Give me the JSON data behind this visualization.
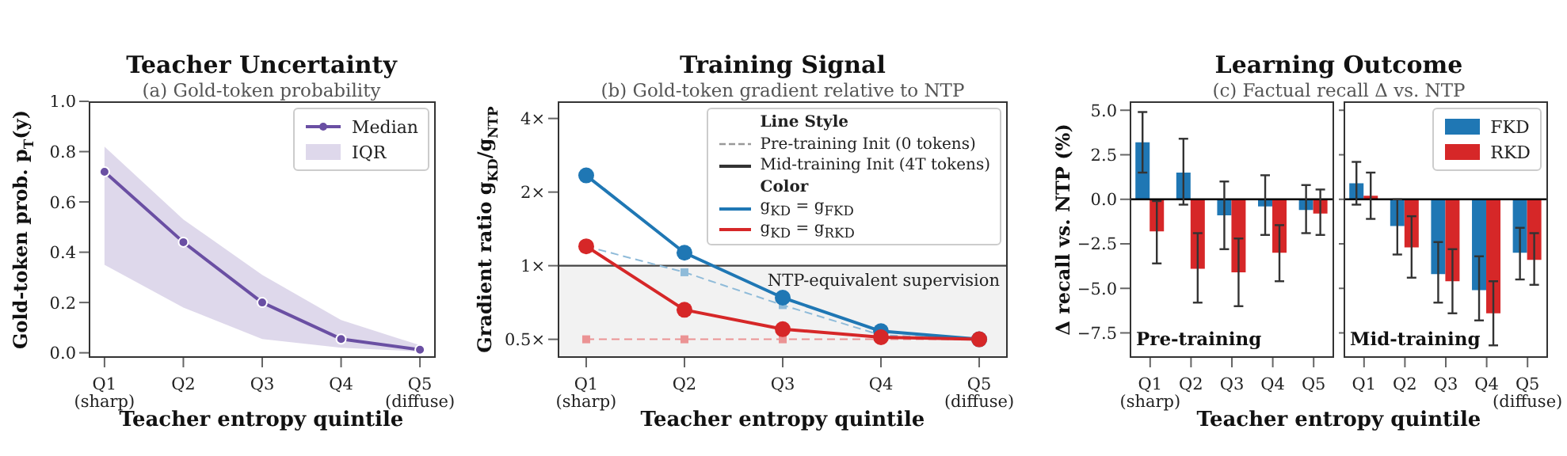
{
  "chart_data": [
    {
      "type": "line",
      "title": "Teacher Uncertainty",
      "subtitle": "(a) Gold-token probability",
      "xlabel": "Teacher entropy quintile",
      "ylabel": "Gold-token prob. p$_{T}$(y)",
      "categories": [
        "Q1\n(sharp)",
        "Q2",
        "Q3",
        "Q4",
        "Q5\n(diffuse)"
      ],
      "series": [
        {
          "name": "Median",
          "color": "#6a4fa3",
          "values": [
            0.72,
            0.44,
            0.2,
            0.055,
            0.012
          ],
          "lower": [
            0.35,
            0.18,
            0.055,
            0.02,
            0.005
          ],
          "upper": [
            0.82,
            0.53,
            0.31,
            0.13,
            0.03
          ]
        }
      ],
      "ylim": [
        -0.02,
        1.0
      ],
      "yticks": [
        {
          "value": 0,
          "label": "0.0"
        },
        {
          "value": 0.2,
          "label": "0.2"
        },
        {
          "value": 0.4,
          "label": "0.4"
        },
        {
          "value": 0.6,
          "label": "0.6"
        },
        {
          "value": 0.8,
          "label": "0.8"
        },
        {
          "value": 1,
          "label": "1.0"
        }
      ],
      "annotations": [
        "IQR"
      ],
      "marker": "circle",
      "legend": "top right"
    },
    {
      "type": "line",
      "title": "Training Signal",
      "subtitle": "(b) Gold-token gradient relative to NTP",
      "xlabel": "Teacher entropy quintile",
      "ylabel": "Gradient ratio g$_{KD}$/g$_{NTP}$",
      "categories": [
        "Q1\n(sharp)",
        "Q2",
        "Q3",
        "Q4",
        "Q5\n(diffuse)"
      ],
      "series": [
        {
          "color": "#8fbbd9",
          "line_style": "dashed",
          "marker": "square",
          "values": [
            1.2,
            0.94,
            0.69,
            0.52,
            0.5
          ]
        },
        {
          "color": "#eb9394",
          "line_style": "dashed",
          "marker": "square",
          "values": [
            0.5,
            0.5,
            0.5,
            0.5,
            0.5
          ]
        },
        {
          "color": "#1f77b4",
          "line_style": "solid",
          "marker": "circle",
          "values": [
            2.34,
            1.13,
            0.74,
            0.54,
            0.5
          ]
        },
        {
          "color": "#d62728",
          "line_style": "solid",
          "marker": "circle",
          "values": [
            1.2,
            0.66,
            0.55,
            0.51,
            0.5
          ]
        }
      ],
      "log": true,
      "ylim": [
        0.42,
        4.7
      ],
      "yticks": [
        {
          "value": 0.5,
          "label": "0.5×"
        },
        {
          "value": 1,
          "label": "1×"
        },
        {
          "value": 2,
          "label": "2×"
        },
        {
          "value": 4,
          "label": "4×"
        }
      ],
      "ref_lines": [
        {
          "axis": "y",
          "value": 1,
          "label": "NTP-equivalent supervision",
          "color": "#444444"
        }
      ],
      "bands": [
        {
          "axis": "y",
          "from": 0.42,
          "to": 1,
          "color": "#f2f2f2"
        }
      ],
      "annotations": [
        "Line Style",
        "Pre-training Init (0 tokens)",
        "Mid-training Init (4T tokens)",
        "Color",
        "g$_{KD}$ = g$_{FKD}$",
        "g$_{KD}$ = g$_{RKD}$"
      ]
    },
    {
      "type": "bar",
      "title": "Learning Outcome",
      "subtitle": "(c) Factual recall Δ vs. NTP",
      "xlabel": "Teacher entropy quintile",
      "ylabel": "Δ recall vs. NTP (%)",
      "categories": [
        "Q1\n(sharp)",
        "Q2",
        "Q3",
        "Q4",
        "Q5"
      ],
      "series": [
        {
          "color": "#1f77b4",
          "values": [
            3.2,
            1.5,
            -0.9,
            -0.4,
            -0.6
          ],
          "errors": [
            [
              1.5,
              4.9
            ],
            [
              -0.3,
              3.4
            ],
            [
              -2.8,
              1.0
            ],
            [
              -2.0,
              1.35
            ],
            [
              -1.9,
              0.8
            ]
          ]
        },
        {
          "color": "#d62728",
          "values": [
            -1.8,
            -3.9,
            -4.1,
            -3.0,
            -0.8
          ],
          "errors": [
            [
              -3.6,
              -0.1
            ],
            [
              -5.8,
              -1.9
            ],
            [
              -6.0,
              -2.2
            ],
            [
              -4.6,
              -1.45
            ],
            [
              -2.0,
              0.55
            ]
          ]
        }
      ],
      "ylim": [
        -8.9,
        5.5
      ],
      "yticks": [
        {
          "value": -7.5,
          "label": "−7.5"
        },
        {
          "value": -5,
          "label": "−5.0"
        },
        {
          "value": -2.5,
          "label": "−2.5"
        },
        {
          "value": 0,
          "label": "0.0"
        },
        {
          "value": 2.5,
          "label": "2.5"
        },
        {
          "value": 5,
          "label": "5.0"
        }
      ],
      "ref_lines": [
        {
          "axis": "y",
          "value": 0,
          "color": "#000000"
        }
      ],
      "annotations": [
        "Pre-training"
      ]
    },
    {
      "type": "bar",
      "categories": [
        "Q1",
        "Q2",
        "Q3",
        "Q4",
        "Q5\n(diffuse)"
      ],
      "series": [
        {
          "name": "FKD",
          "color": "#1f77b4",
          "values": [
            0.9,
            -1.5,
            -4.2,
            -5.1,
            -3.0
          ],
          "errors": [
            [
              -0.3,
              2.1
            ],
            [
              -3.1,
              0.0
            ],
            [
              -5.8,
              -2.4
            ],
            [
              -6.8,
              -3.2
            ],
            [
              -4.5,
              -1.6
            ]
          ]
        },
        {
          "name": "RKD",
          "color": "#d62728",
          "values": [
            0.2,
            -2.7,
            -4.6,
            -6.4,
            -3.4
          ],
          "errors": [
            [
              -1.1,
              1.5
            ],
            [
              -4.4,
              -0.95
            ],
            [
              -6.4,
              -2.8
            ],
            [
              -8.2,
              -4.6
            ],
            [
              -4.8,
              -1.9
            ]
          ]
        }
      ],
      "ylim": [
        -8.9,
        5.5
      ],
      "yticks": [
        -7.5,
        -5,
        -2.5,
        0,
        2.5,
        5
      ],
      "tick_labels": "x",
      "ref_lines": [
        {
          "axis": "y",
          "value": 0,
          "color": "#000000"
        }
      ],
      "annotations": [
        "Mid-training"
      ],
      "legend": "top right"
    }
  ]
}
